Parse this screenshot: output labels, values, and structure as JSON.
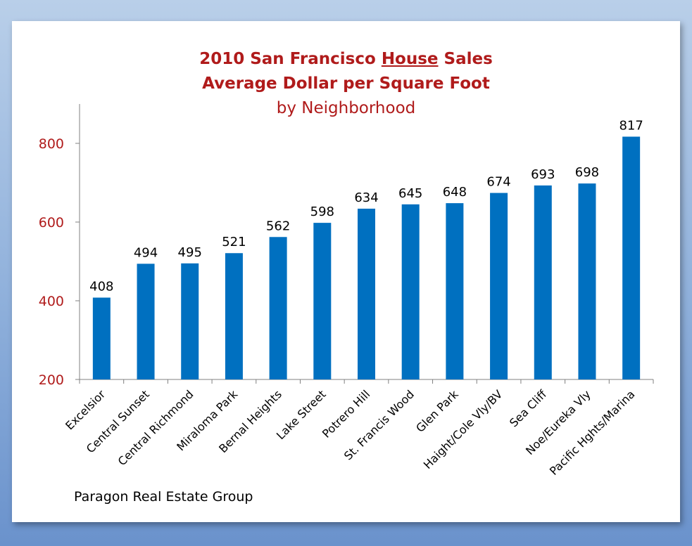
{
  "title_part1": "2010 San Francisco ",
  "title_underlined": "House",
  "title_part2": " Sales",
  "title_line2": "Average Dollar per Square Foot",
  "title_line3": "by Neighborhood",
  "source": "Paragon Real Estate Group",
  "colors": {
    "bar": "#0070c0",
    "title": "#b01b1b",
    "tick_label": "#b01b1b"
  },
  "chart_data": {
    "type": "bar",
    "categories": [
      "Excelsior",
      "Central Sunset",
      "Central Richmond",
      "Miraloma Park",
      "Bernal Heights",
      "Lake Street",
      "Potrero Hill",
      "St. Francis Wood",
      "Glen Park",
      "Haight/Cole Vly/BV",
      "Sea Cliff",
      "Noe/Eureka Vly",
      "Pacific Hghts/Marina"
    ],
    "values": [
      408,
      494,
      495,
      521,
      562,
      598,
      634,
      645,
      648,
      674,
      693,
      698,
      817
    ],
    "value_labels": [
      "408",
      "494",
      "495",
      "521",
      "562",
      "598",
      "634",
      "645",
      "648",
      "674",
      "693",
      "698",
      "817"
    ],
    "yticks": [
      200,
      400,
      600,
      800
    ],
    "ytick_labels": [
      "200",
      "400",
      "600",
      "800"
    ],
    "ylim": [
      200,
      900
    ],
    "grid": false,
    "legend": "none"
  }
}
